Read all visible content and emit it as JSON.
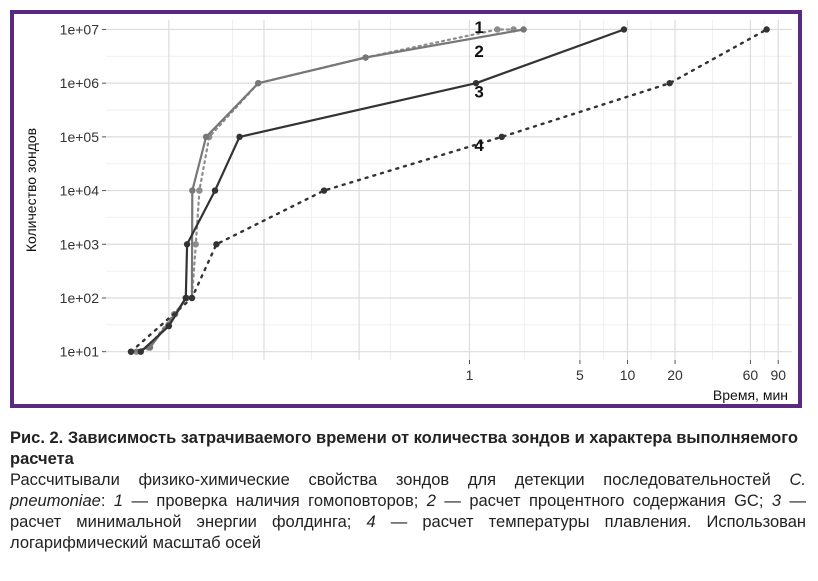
{
  "chart_data": {
    "type": "line",
    "xlabel": "Время, мин",
    "ylabel": "Количество зондов",
    "x_scale": "log",
    "y_scale": "log",
    "xlim": [
      0.005,
      110
    ],
    "ylim": [
      7,
      15000000
    ],
    "grid": true,
    "x_ticks": [
      {
        "value": 1,
        "label": "1"
      },
      {
        "value": 5,
        "label": "5"
      },
      {
        "value": 10,
        "label": "10"
      },
      {
        "value": 20,
        "label": "20"
      },
      {
        "value": 60,
        "label": "60"
      },
      {
        "value": 90,
        "label": "90"
      }
    ],
    "y_ticks": [
      {
        "value": 10,
        "label": "1e+01"
      },
      {
        "value": 100,
        "label": "1e+02"
      },
      {
        "value": 1000,
        "label": "1e+03"
      },
      {
        "value": 10000,
        "label": "1e+04"
      },
      {
        "value": 100000,
        "label": "1e+05"
      },
      {
        "value": 1000000,
        "label": "1e+06"
      },
      {
        "value": 10000000,
        "label": "1e+07"
      }
    ],
    "series": [
      {
        "name": "1",
        "color": "#8c8c8c",
        "dash": "2,4",
        "width": 2.2,
        "points": [
          [
            0.0078,
            10
          ],
          [
            0.0093,
            12
          ],
          [
            0.0135,
            50
          ],
          [
            0.0162,
            100
          ],
          [
            0.0175,
            100
          ],
          [
            0.0185,
            1000
          ],
          [
            0.0195,
            10000
          ],
          [
            0.0225,
            100000
          ],
          [
            0.046,
            1000000
          ],
          [
            0.22,
            3000000
          ],
          [
            1.5,
            10000000
          ],
          [
            1.9,
            10000000
          ]
        ]
      },
      {
        "name": "2",
        "color": "#777777",
        "dash": "",
        "width": 2.2,
        "points": [
          [
            0.0072,
            10
          ],
          [
            0.0095,
            12
          ],
          [
            0.0137,
            50
          ],
          [
            0.016,
            100
          ],
          [
            0.0175,
            100
          ],
          [
            0.0176,
            10000
          ],
          [
            0.0215,
            100000
          ],
          [
            0.046,
            1000000
          ],
          [
            0.22,
            3000000
          ],
          [
            2.2,
            10000000
          ]
        ]
      },
      {
        "name": "3",
        "color": "#333333",
        "dash": "",
        "width": 2.2,
        "points": [
          [
            0.0083,
            10
          ],
          [
            0.0125,
            30
          ],
          [
            0.016,
            100
          ],
          [
            0.0163,
            1000
          ],
          [
            0.0245,
            10000
          ],
          [
            0.035,
            100000
          ],
          [
            1.1,
            1000000
          ],
          [
            9.5,
            10000000
          ]
        ]
      },
      {
        "name": "4",
        "color": "#333333",
        "dash": "2,6",
        "width": 2.4,
        "points": [
          [
            0.0072,
            10
          ],
          [
            0.0175,
            100
          ],
          [
            0.025,
            1000
          ],
          [
            0.12,
            10000
          ],
          [
            1.6,
            100000
          ],
          [
            18.5,
            1000000
          ],
          [
            76,
            10000000
          ]
        ]
      }
    ],
    "series_labels": [
      {
        "text": "1",
        "x": 1.15,
        "y": 11000000
      },
      {
        "text": "2",
        "x": 1.15,
        "y": 4000000
      },
      {
        "text": "3",
        "x": 1.15,
        "y": 700000
      },
      {
        "text": "4",
        "x": 1.15,
        "y": 70000
      }
    ]
  },
  "caption": {
    "title": "Рис. 2. Зависимость затрачиваемого времени от количества зондов и характера выполняемого расчета",
    "body": [
      {
        "text": "Рассчитывали физико-химические свойства зондов для детекции последовательно­стей ",
        "italic": false
      },
      {
        "text": "C. pneumoniae",
        "italic": true
      },
      {
        "text": ": ",
        "italic": false
      },
      {
        "text": "1",
        "italic": true
      },
      {
        "text": " — проверка наличия гомоповторов; ",
        "italic": false
      },
      {
        "text": "2",
        "italic": true
      },
      {
        "text": " — расчет процентного со­держания GC; ",
        "italic": false
      },
      {
        "text": "3",
        "italic": true
      },
      {
        "text": " — расчет минимальной энергии фолдинга; ",
        "italic": false
      },
      {
        "text": "4",
        "italic": true
      },
      {
        "text": " — расчет температуры плавления. Использован логарифмический масштаб осей",
        "italic": false
      }
    ]
  }
}
